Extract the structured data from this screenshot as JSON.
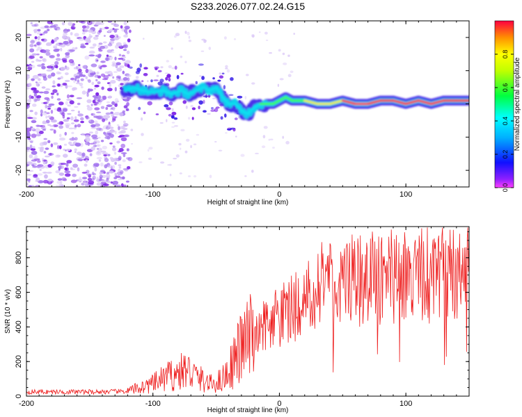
{
  "title": "S233.2026.077.02.24.G15",
  "colors": {
    "snr_line": "#ee1c1c",
    "frame": "#000000",
    "cloud_light": "#d9c6f7",
    "cloud_mid": "#a070ee",
    "cloud_dark": "#7a1fe6",
    "ridge_blue": "#2a10e6",
    "ridge_cyan": "#10e0f0",
    "ridge_green": "#40ff40",
    "ridge_yellow": "#f0f020",
    "ridge_red": "#ff2020"
  },
  "chart_data": [
    {
      "type": "heatmap",
      "title": "S233.2026.077.02.24.G15",
      "xlabel": "Height of straight line (km)",
      "ylabel": "Frequency (Hz)",
      "xlim": [
        -200,
        150
      ],
      "ylim": [
        -25,
        25
      ],
      "xticks": [
        -200,
        -100,
        0,
        100
      ],
      "yticks": [
        -20,
        -10,
        0,
        10,
        20
      ],
      "colorbar": {
        "label": "Normalized spectral amplitude",
        "range": [
          0,
          1
        ],
        "ticks": [
          "0.0",
          "0.2",
          "0.4",
          "0.6",
          "0.8"
        ],
        "tick_values": [
          0,
          0.2,
          0.4,
          0.6,
          0.8
        ]
      },
      "ridge": {
        "x": [
          -122,
          -115,
          -108,
          -100,
          -92,
          -85,
          -78,
          -72,
          -65,
          -60,
          -55,
          -50,
          -45,
          -40,
          -35,
          -30,
          -25,
          -20,
          -15,
          -10,
          -5,
          0,
          5,
          10,
          20,
          30,
          40,
          50,
          60,
          70,
          80,
          90,
          100,
          110,
          120,
          130,
          140,
          150
        ],
        "y": [
          4,
          5,
          4,
          3.5,
          4,
          3,
          4,
          3,
          4,
          5,
          4,
          5,
          2,
          0,
          0,
          -2,
          -3,
          -1,
          0,
          0,
          0,
          1,
          2,
          1,
          1,
          0,
          0,
          1,
          0,
          0,
          1,
          1,
          0,
          1,
          0,
          1,
          1,
          1
        ],
        "amplitude": [
          0.3,
          0.35,
          0.3,
          0.3,
          0.35,
          0.3,
          0.35,
          0.3,
          0.35,
          0.4,
          0.35,
          0.4,
          0.35,
          0.35,
          0.35,
          0.3,
          0.3,
          0.4,
          0.5,
          0.5,
          0.55,
          0.6,
          0.55,
          0.6,
          0.7,
          0.75,
          0.8,
          0.85,
          0.9,
          0.9,
          0.85,
          0.9,
          0.9,
          0.95,
          0.9,
          0.9,
          0.9,
          0.85
        ]
      }
    },
    {
      "type": "line",
      "xlabel": "Height of straight line (km)",
      "ylabel": "SNR (10 * v/v)",
      "xlim": [
        -200,
        150
      ],
      "ylim": [
        0,
        980
      ],
      "xticks": [
        -200,
        -100,
        0,
        100
      ],
      "yticks": [
        0,
        200,
        400,
        600,
        800
      ],
      "series": [
        {
          "name": "SNR",
          "x": [
            -200,
            -180,
            -160,
            -140,
            -120,
            -115,
            -110,
            -100,
            -90,
            -80,
            -75,
            -70,
            -65,
            -60,
            -55,
            -50,
            -45,
            -40,
            -35,
            -30,
            -25,
            -20,
            -15,
            -10,
            -5,
            0,
            5,
            10,
            15,
            20,
            25,
            30,
            35,
            40,
            50,
            60,
            70,
            80,
            90,
            100,
            110,
            120,
            130,
            140,
            150
          ],
          "y": [
            25,
            25,
            25,
            25,
            28,
            40,
            50,
            70,
            110,
            130,
            150,
            140,
            110,
            90,
            70,
            80,
            100,
            150,
            220,
            280,
            320,
            350,
            380,
            410,
            440,
            460,
            480,
            500,
            540,
            580,
            600,
            620,
            640,
            650,
            660,
            670,
            660,
            680,
            690,
            680,
            690,
            680,
            700,
            690,
            690
          ]
        }
      ]
    }
  ]
}
